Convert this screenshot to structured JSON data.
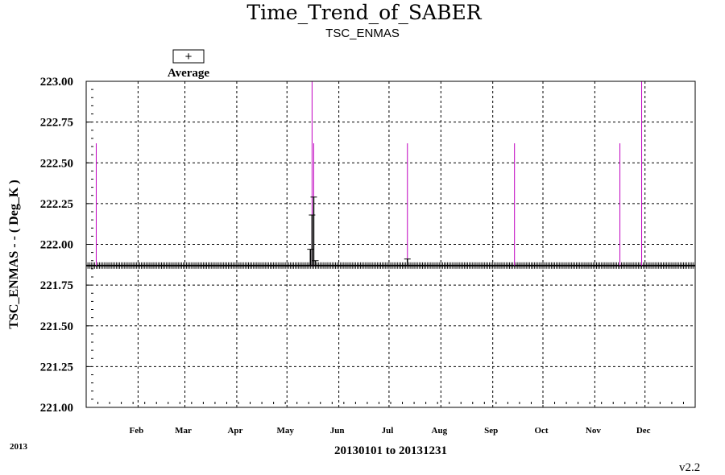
{
  "chart_data": {
    "type": "line",
    "title": "Time_Trend_of_SABER",
    "subtitle": "TSC_ENMAS",
    "ylabel": "TSC_ENMAS - - ( Deg_K )",
    "xlabel": "20130101 to 20131231",
    "year_label": "2013",
    "version": "v2.2",
    "legend": {
      "marker": "+",
      "label": "Average",
      "placement": "top-left"
    },
    "ylim": [
      221.0,
      223.0
    ],
    "yticks": [
      "223.00",
      "222.75",
      "222.50",
      "222.25",
      "222.00",
      "221.75",
      "221.50",
      "221.25",
      "221.00"
    ],
    "xlim": [
      "2013-01-01",
      "2013-12-31"
    ],
    "xticks": [
      {
        "label": "Feb",
        "date": "2013-02-01"
      },
      {
        "label": "Mar",
        "date": "2013-03-01"
      },
      {
        "label": "Apr",
        "date": "2013-04-01"
      },
      {
        "label": "May",
        "date": "2013-05-01"
      },
      {
        "label": "Jun",
        "date": "2013-06-01"
      },
      {
        "label": "Jul",
        "date": "2013-07-01"
      },
      {
        "label": "Aug",
        "date": "2013-08-01"
      },
      {
        "label": "Sep",
        "date": "2013-09-01"
      },
      {
        "label": "Oct",
        "date": "2013-10-01"
      },
      {
        "label": "Nov",
        "date": "2013-11-01"
      },
      {
        "label": "Dec",
        "date": "2013-12-01"
      }
    ],
    "grid": true,
    "series": [
      {
        "name": "Average",
        "color": "#000000",
        "baseline": 221.87,
        "points": [
          {
            "date": "2013-05-15",
            "value": 221.97
          },
          {
            "date": "2013-05-16",
            "value": 222.18
          },
          {
            "date": "2013-05-17",
            "value": 222.29
          },
          {
            "date": "2013-05-18",
            "value": 221.9
          },
          {
            "date": "2013-07-12",
            "value": 221.91
          }
        ]
      },
      {
        "name": "",
        "color": "#c000c0",
        "spikes": [
          {
            "date": "2013-01-07",
            "value": 222.62
          },
          {
            "date": "2013-05-16",
            "value": 223.0
          },
          {
            "date": "2013-05-17",
            "value": 222.62
          },
          {
            "date": "2013-07-12",
            "value": 222.62
          },
          {
            "date": "2013-09-14",
            "value": 222.62
          },
          {
            "date": "2013-11-16",
            "value": 222.62
          },
          {
            "date": "2013-11-29",
            "value": 223.0
          }
        ]
      }
    ]
  }
}
